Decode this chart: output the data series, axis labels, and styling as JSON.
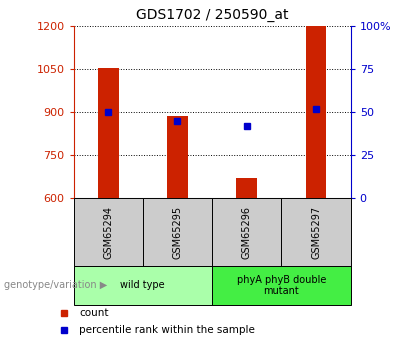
{
  "title": "GDS1702 / 250590_at",
  "samples": [
    "GSM65294",
    "GSM65295",
    "GSM65296",
    "GSM65297"
  ],
  "count_values": [
    1055,
    885,
    670,
    1200
  ],
  "percentile_values": [
    50,
    45,
    42,
    52
  ],
  "ylim_left": [
    600,
    1200
  ],
  "ylim_right": [
    0,
    100
  ],
  "yticks_left": [
    600,
    750,
    900,
    1050,
    1200
  ],
  "yticks_right": [
    0,
    25,
    50,
    75,
    100
  ],
  "ytick_labels_right": [
    "0",
    "25",
    "50",
    "75",
    "100%"
  ],
  "bar_color": "#cc2200",
  "dot_color": "#0000cc",
  "groups": [
    {
      "label": "wild type",
      "samples": [
        0,
        1
      ],
      "color": "#aaffaa"
    },
    {
      "label": "phyA phyB double\nmutant",
      "samples": [
        2,
        3
      ],
      "color": "#44ee44"
    }
  ],
  "group_label_prefix": "genotype/variation",
  "legend_count_label": "count",
  "legend_pct_label": "percentile rank within the sample",
  "bar_width": 0.3,
  "left_tick_color": "#cc2200",
  "right_tick_color": "#0000cc",
  "sample_row_color": "#cccccc"
}
